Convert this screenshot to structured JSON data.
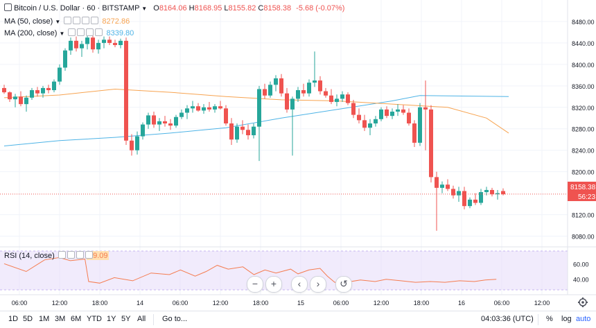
{
  "legend": {
    "symbol": "Bitcoin / U.S. Dollar · 60 · BITSTAMP",
    "o_label": "O",
    "o_val": "8164.06",
    "h_label": "H",
    "h_val": "8168.95",
    "l_label": "L",
    "l_val": "8155.82",
    "c_label": "C",
    "c_val": "8158.38",
    "change": "-5.68 (-0.07%)",
    "ma50_label": "MA (50, close)",
    "ma50_val": "8272.86",
    "ma200_label": "MA (200, close)",
    "ma200_val": "8339.80"
  },
  "price_axis": {
    "ticks": [
      "8480.00",
      "8440.00",
      "8400.00",
      "8360.00",
      "8320.00",
      "8280.00",
      "8240.00",
      "8200.00",
      "8120.00",
      "8080.00"
    ],
    "last_price": "8158.38",
    "countdown": "56:23"
  },
  "rsi": {
    "label": "RSI (14, close)",
    "value": "39.09",
    "ticks": [
      "60.00",
      "40.00"
    ]
  },
  "time_axis": [
    "06:00",
    "12:00",
    "18:00",
    "14",
    "06:00",
    "12:00",
    "18:00",
    "15",
    "06:00",
    "12:00",
    "18:00",
    "16",
    "06:00",
    "12:00"
  ],
  "navigation": {
    "zoom_out": "−",
    "zoom_in": "+",
    "scroll_left": "‹",
    "scroll_right": "›",
    "reset": "↺"
  },
  "range_bar": {
    "ranges": [
      "1D",
      "5D",
      "1M",
      "3M",
      "6M",
      "YTD",
      "1Y",
      "5Y",
      "All"
    ],
    "goto": "Go to...",
    "clock": "04:03:36 (UTC)",
    "percent": "%",
    "log": "log",
    "auto": "auto"
  },
  "colors": {
    "up": "#26a69a",
    "down": "#ef5350",
    "ma50": "#f7a350",
    "ma200": "#4db3e6",
    "rsi_line": "#f57c50",
    "rsi_band": "#e8defa",
    "grid": "#f0f3fa"
  },
  "chart_data": {
    "type": "candlestick",
    "y_range": [
      8060,
      8520
    ],
    "rsi_range": [
      20,
      80
    ],
    "candles": [
      [
        8356,
        8362,
        8345,
        8348
      ],
      [
        8348,
        8350,
        8330,
        8335
      ],
      [
        8335,
        8345,
        8320,
        8340
      ],
      [
        8340,
        8350,
        8322,
        8326
      ],
      [
        8326,
        8342,
        8312,
        8338
      ],
      [
        8338,
        8356,
        8334,
        8352
      ],
      [
        8352,
        8358,
        8340,
        8346
      ],
      [
        8346,
        8360,
        8338,
        8356
      ],
      [
        8356,
        8362,
        8346,
        8352
      ],
      [
        8352,
        8372,
        8348,
        8368
      ],
      [
        8368,
        8400,
        8362,
        8394
      ],
      [
        8394,
        8430,
        8388,
        8426
      ],
      [
        8426,
        8450,
        8418,
        8444
      ],
      [
        8444,
        8452,
        8424,
        8430
      ],
      [
        8430,
        8444,
        8414,
        8438
      ],
      [
        8438,
        8456,
        8428,
        8450
      ],
      [
        8450,
        8454,
        8422,
        8428
      ],
      [
        8428,
        8446,
        8420,
        8440
      ],
      [
        8440,
        8452,
        8430,
        8446
      ],
      [
        8446,
        8452,
        8436,
        8440
      ],
      [
        8440,
        8446,
        8432,
        8436
      ],
      [
        8436,
        8448,
        8430,
        8444
      ],
      [
        8444,
        8450,
        8250,
        8258
      ],
      [
        8258,
        8270,
        8230,
        8240
      ],
      [
        8240,
        8275,
        8232,
        8266
      ],
      [
        8266,
        8292,
        8260,
        8288
      ],
      [
        8288,
        8310,
        8280,
        8305
      ],
      [
        8305,
        8312,
        8282,
        8288
      ],
      [
        8288,
        8300,
        8276,
        8294
      ],
      [
        8294,
        8304,
        8284,
        8290
      ],
      [
        8290,
        8298,
        8278,
        8286
      ],
      [
        8286,
        8306,
        8282,
        8302
      ],
      [
        8302,
        8316,
        8298,
        8310
      ],
      [
        8310,
        8324,
        8298,
        8318
      ],
      [
        8318,
        8332,
        8310,
        8322
      ],
      [
        8322,
        8328,
        8312,
        8314
      ],
      [
        8314,
        8326,
        8308,
        8320
      ],
      [
        8320,
        8330,
        8312,
        8316
      ],
      [
        8316,
        8326,
        8310,
        8322
      ],
      [
        8322,
        8332,
        8316,
        8318
      ],
      [
        8318,
        8324,
        8286,
        8290
      ],
      [
        8290,
        8300,
        8250,
        8260
      ],
      [
        8260,
        8290,
        8254,
        8284
      ],
      [
        8284,
        8296,
        8270,
        8278
      ],
      [
        8278,
        8288,
        8260,
        8268
      ],
      [
        8268,
        8290,
        8262,
        8284
      ],
      [
        8284,
        8360,
        8220,
        8354
      ],
      [
        8354,
        8364,
        8336,
        8342
      ],
      [
        8342,
        8368,
        8338,
        8362
      ],
      [
        8362,
        8380,
        8350,
        8374
      ],
      [
        8374,
        8382,
        8340,
        8346
      ],
      [
        8346,
        8356,
        8310,
        8316
      ],
      [
        8316,
        8340,
        8230,
        8336
      ],
      [
        8336,
        8358,
        8330,
        8352
      ],
      [
        8352,
        8364,
        8340,
        8346
      ],
      [
        8346,
        8372,
        8340,
        8366
      ],
      [
        8366,
        8424,
        8358,
        8370
      ],
      [
        8370,
        8378,
        8344,
        8350
      ],
      [
        8350,
        8356,
        8338,
        8342
      ],
      [
        8342,
        8354,
        8326,
        8330
      ],
      [
        8330,
        8344,
        8322,
        8336
      ],
      [
        8336,
        8350,
        8330,
        8344
      ],
      [
        8344,
        8348,
        8324,
        8328
      ],
      [
        8328,
        8334,
        8300,
        8306
      ],
      [
        8306,
        8318,
        8290,
        8296
      ],
      [
        8296,
        8306,
        8276,
        8282
      ],
      [
        8282,
        8298,
        8268,
        8290
      ],
      [
        8290,
        8304,
        8284,
        8298
      ],
      [
        8298,
        8320,
        8294,
        8316
      ],
      [
        8316,
        8322,
        8300,
        8304
      ],
      [
        8304,
        8318,
        8298,
        8312
      ],
      [
        8312,
        8326,
        8304,
        8316
      ],
      [
        8316,
        8324,
        8306,
        8310
      ],
      [
        8310,
        8318,
        8286,
        8290
      ],
      [
        8290,
        8296,
        8246,
        8254
      ],
      [
        8254,
        8328,
        8248,
        8320
      ],
      [
        8320,
        8370,
        8240,
        8316
      ],
      [
        8316,
        8324,
        8180,
        8190
      ],
      [
        8190,
        8200,
        8090,
        8170
      ],
      [
        8170,
        8182,
        8160,
        8176
      ],
      [
        8176,
        8186,
        8164,
        8168
      ],
      [
        8168,
        8174,
        8150,
        8156
      ],
      [
        8156,
        8172,
        8144,
        8164
      ],
      [
        8164,
        8172,
        8130,
        8136
      ],
      [
        8136,
        8152,
        8132,
        8148
      ],
      [
        8148,
        8160,
        8138,
        8142
      ],
      [
        8142,
        8168,
        8138,
        8162
      ],
      [
        8162,
        8172,
        8156,
        8166
      ],
      [
        8166,
        8170,
        8154,
        8158
      ],
      [
        8158,
        8166,
        8148,
        8160
      ],
      [
        8164,
        8169,
        8156,
        8158
      ]
    ],
    "ma50": [
      [
        0,
        8338
      ],
      [
        10,
        8343
      ],
      [
        20,
        8354
      ],
      [
        30,
        8348
      ],
      [
        40,
        8340
      ],
      [
        50,
        8334
      ],
      [
        60,
        8332
      ],
      [
        70,
        8326
      ],
      [
        80,
        8320
      ],
      [
        87,
        8300
      ],
      [
        91,
        8272
      ]
    ],
    "ma200": [
      [
        0,
        8248
      ],
      [
        10,
        8258
      ],
      [
        20,
        8264
      ],
      [
        30,
        8272
      ],
      [
        40,
        8282
      ],
      [
        50,
        8300
      ],
      [
        60,
        8316
      ],
      [
        70,
        8332
      ],
      [
        75,
        8342
      ],
      [
        91,
        8340
      ]
    ],
    "rsi": [
      [
        0,
        60
      ],
      [
        6,
        50
      ],
      [
        11,
        65
      ],
      [
        15,
        68
      ],
      [
        18,
        64
      ],
      [
        22,
        66
      ],
      [
        23,
        37
      ],
      [
        26,
        35
      ],
      [
        30,
        42
      ],
      [
        35,
        38
      ],
      [
        40,
        48
      ],
      [
        45,
        46
      ],
      [
        48,
        52
      ],
      [
        52,
        44
      ],
      [
        55,
        50
      ],
      [
        58,
        58
      ],
      [
        61,
        53
      ],
      [
        65,
        56
      ],
      [
        68,
        46
      ],
      [
        71,
        52
      ],
      [
        74,
        48
      ],
      [
        78,
        53
      ],
      [
        80,
        47
      ],
      [
        83,
        52
      ],
      [
        86,
        54
      ],
      [
        88,
        44
      ],
      [
        90,
        36
      ],
      [
        93,
        36
      ],
      [
        97,
        39
      ],
      [
        101,
        37
      ],
      [
        104,
        40
      ],
      [
        108,
        38
      ],
      [
        112,
        36
      ],
      [
        116,
        37
      ],
      [
        120,
        36
      ],
      [
        124,
        38
      ],
      [
        128,
        37
      ],
      [
        131,
        39
      ],
      [
        134,
        40
      ]
    ]
  }
}
